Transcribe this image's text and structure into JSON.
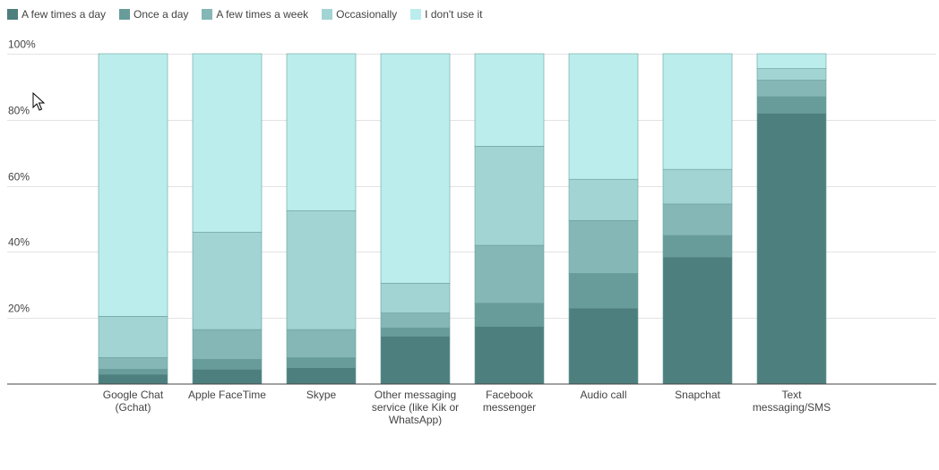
{
  "chart_data": {
    "type": "bar",
    "stacked": true,
    "normalized": true,
    "categories": [
      "Google Chat (Gchat)",
      "Apple FaceTime",
      "Skype",
      "Other messaging service (like Kik or WhatsApp)",
      "Facebook messenger",
      "Audio call",
      "Snapchat",
      "Text messaging/SMS"
    ],
    "category_lines": [
      [
        "Google Chat",
        "(Gchat)"
      ],
      [
        "Apple FaceTime"
      ],
      [
        "Skype"
      ],
      [
        "Other messaging",
        "service (like Kik or",
        "WhatsApp)"
      ],
      [
        "Facebook",
        "messenger"
      ],
      [
        "Audio call"
      ],
      [
        "Snapchat"
      ],
      [
        "Text",
        "messaging/SMS"
      ]
    ],
    "series": [
      {
        "name": "A few times a day",
        "color": "#4d7f7e",
        "values": [
          3,
          4.5,
          5,
          14.5,
          17.5,
          23,
          38.5,
          82
        ]
      },
      {
        "name": "Once a day",
        "color": "#689c9a",
        "values": [
          1.5,
          3,
          3,
          2.5,
          7,
          10.5,
          6.5,
          5
        ]
      },
      {
        "name": "A few times a week",
        "color": "#84b7b6",
        "values": [
          3.5,
          9,
          8.5,
          4.5,
          17.5,
          16,
          9.5,
          5
        ]
      },
      {
        "name": "Occasionally",
        "color": "#a2d4d4",
        "values": [
          12.5,
          29.5,
          36,
          9,
          30,
          12.5,
          10.5,
          3.5
        ]
      },
      {
        "name": "I don't use it",
        "color": "#bbeded",
        "values": [
          79.5,
          54,
          47.5,
          69.5,
          28,
          38,
          35,
          4.5
        ]
      }
    ],
    "y_ticks": [
      "20%",
      "40%",
      "60%",
      "80%",
      "100%"
    ],
    "y_tick_values": [
      20,
      40,
      60,
      80,
      100
    ],
    "ylim": [
      0,
      100
    ],
    "grid": true,
    "legend_position": "top-left"
  }
}
